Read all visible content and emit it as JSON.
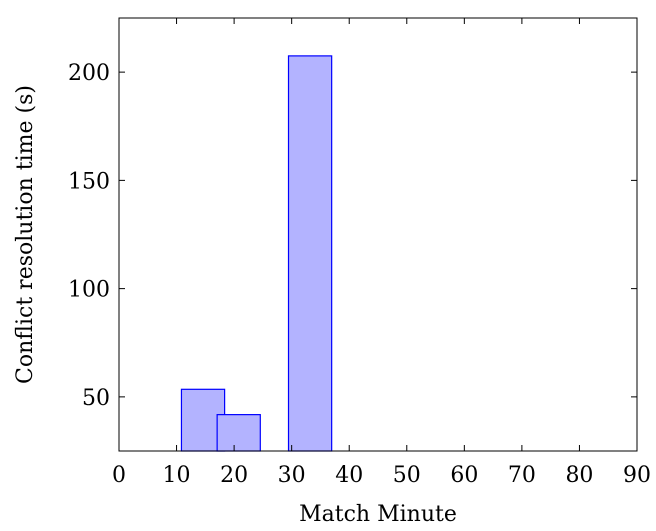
{
  "chart_data": {
    "type": "bar",
    "title": "",
    "xlabel": "Match Minute",
    "ylabel": "Conflict resolution time (s)",
    "xlim": [
      0,
      90
    ],
    "ylim": [
      25,
      225
    ],
    "x_ticks": [
      0,
      10,
      20,
      30,
      40,
      50,
      60,
      70,
      80,
      90
    ],
    "y_ticks": [
      50,
      100,
      150,
      200
    ],
    "bar_width": 7.5,
    "bars": [
      {
        "x": 14.6,
        "value": 53.5
      },
      {
        "x": 20.8,
        "value": 41.8
      },
      {
        "x": 33.2,
        "value": 207.5
      }
    ],
    "grid": false,
    "colors": {
      "bar_fill": "#b3b3ff",
      "bar_stroke": "#0000ff",
      "axis": "#000000"
    }
  }
}
